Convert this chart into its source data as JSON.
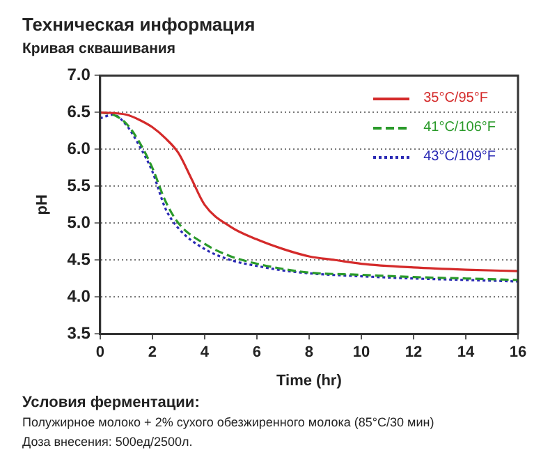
{
  "chart_data": {
    "type": "line",
    "title": "Техническая информация",
    "subtitle": "Кривая сквашивания",
    "xlabel": "Time (hr)",
    "ylabel": "pH",
    "xlim": [
      0,
      16
    ],
    "xticks": [
      0,
      2,
      4,
      6,
      8,
      10,
      12,
      14,
      16
    ],
    "ylim": [
      3.5,
      7.0
    ],
    "yticks": [
      {
        "value": 3.5,
        "label": "3.5"
      },
      {
        "value": 4,
        "label": "4.0"
      },
      {
        "value": 4.5,
        "label": "4.5"
      },
      {
        "value": 5,
        "label": "5.0"
      },
      {
        "value": 5.5,
        "label": "5.5"
      },
      {
        "value": 6,
        "label": "6.0"
      },
      {
        "value": 6.5,
        "label": "6.5"
      },
      {
        "value": 7,
        "label": "7.0"
      }
    ],
    "grid": "y",
    "legend": "top right",
    "marker": "none",
    "series": [
      {
        "name": "35°C/95°F",
        "color": "#d42a2a",
        "line_style": "solid",
        "x": [
          0,
          1,
          1.5,
          2,
          2.5,
          3,
          3.5,
          4,
          5,
          6,
          7,
          8,
          9,
          10,
          12,
          14,
          16
        ],
        "values": [
          6.5,
          6.47,
          6.4,
          6.3,
          6.15,
          5.95,
          5.6,
          5.25,
          4.95,
          4.78,
          4.65,
          4.55,
          4.5,
          4.45,
          4.4,
          4.37,
          4.35
        ]
      },
      {
        "name": "41°C/106°F",
        "color": "#2a9a2a",
        "line_style": "dashed",
        "x": [
          0,
          0.5,
          1,
          1.5,
          2,
          2.5,
          3,
          4,
          5,
          6,
          7,
          8,
          10,
          12,
          14,
          16
        ],
        "values": [
          6.5,
          6.47,
          6.35,
          6.1,
          5.75,
          5.3,
          5.0,
          4.72,
          4.55,
          4.45,
          4.38,
          4.33,
          4.3,
          4.27,
          4.25,
          4.23
        ]
      },
      {
        "name": "43°C/109°F",
        "color": "#2a2ab4",
        "line_style": "dotted",
        "x": [
          0,
          0.5,
          1,
          1.5,
          2,
          2.5,
          3,
          4,
          5,
          6,
          7,
          8,
          10,
          12,
          14,
          16
        ],
        "values": [
          6.42,
          6.47,
          6.33,
          6.05,
          5.7,
          5.2,
          4.93,
          4.65,
          4.5,
          4.42,
          4.36,
          4.32,
          4.28,
          4.25,
          4.23,
          4.21
        ]
      }
    ],
    "annotations": [
      "Условия ферментации:",
      "Полужирное молоко + 2% сухого обезжиренного молока (85°C/30 мин)",
      "Доза внесения: 500ед/2500л."
    ]
  }
}
